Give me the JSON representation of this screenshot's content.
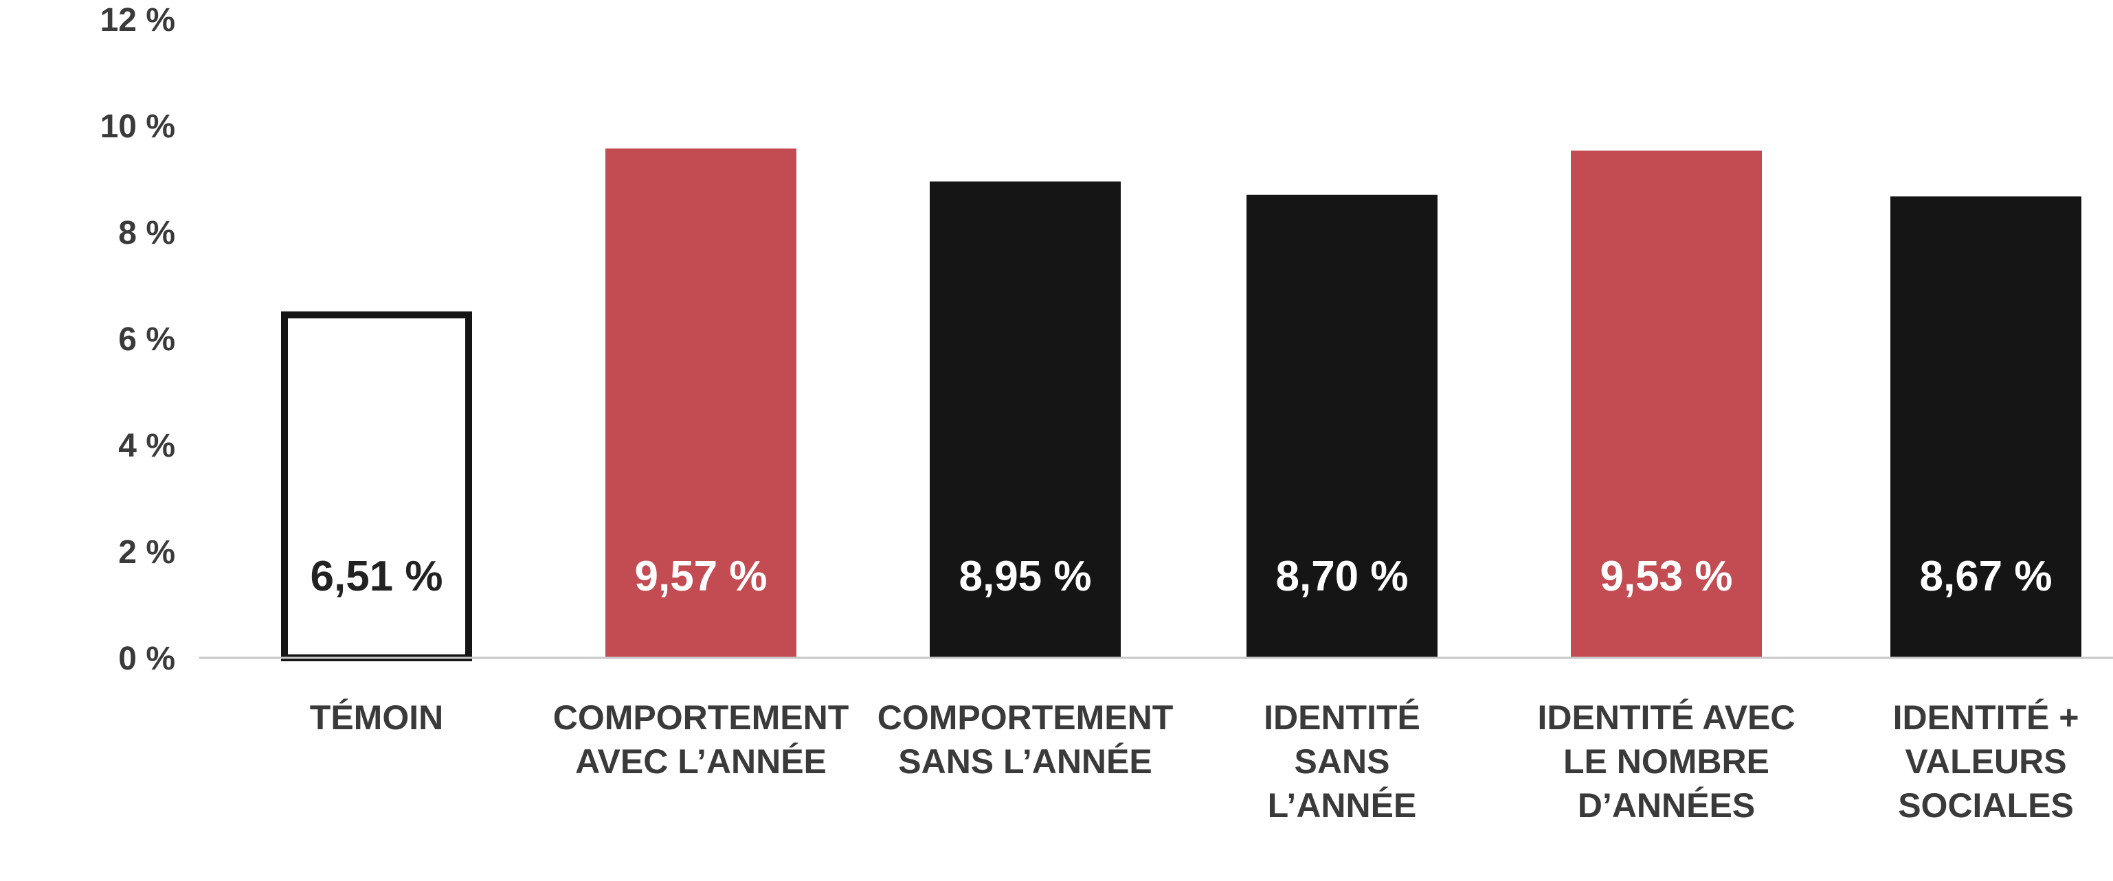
{
  "chart_data": {
    "type": "bar",
    "title": "",
    "xlabel": "",
    "ylabel": "",
    "ylim": [
      0,
      12
    ],
    "yticks": [
      0,
      2,
      4,
      6,
      8,
      10,
      12
    ],
    "ytick_labels": [
      "0 %",
      "2 %",
      "4 %",
      "6 %",
      "8 %",
      "10 %",
      "12 %"
    ],
    "grid": false,
    "legend": "none",
    "categories": [
      [
        "TÉMOIN"
      ],
      [
        "COMPORTEMENT",
        "AVEC L’ANNÉE"
      ],
      [
        "COMPORTEMENT",
        "SANS L’ANNÉE"
      ],
      [
        "IDENTITÉ",
        "SANS",
        "L’ANNÉE"
      ],
      [
        "IDENTITÉ AVEC",
        "LE NOMBRE",
        "D’ANNÉES"
      ],
      [
        "IDENTITÉ +",
        "VALEURS",
        "SOCIALES"
      ]
    ],
    "values": [
      6.51,
      9.57,
      8.95,
      8.7,
      9.53,
      8.67
    ],
    "data_labels": [
      "6,51 %",
      "9,57 %",
      "8,95 %",
      "8,70 %",
      "9,53 %",
      "8,67 %"
    ],
    "bar_styles": [
      "outline",
      "red",
      "black",
      "black",
      "red",
      "black"
    ],
    "colors": {
      "red": "#c24c52",
      "black": "#151515",
      "outline_stroke": "#151515",
      "outline_fill": "#ffffff",
      "label_on_dark": "#ffffff",
      "label_on_light": "#222222",
      "axis_line": "#c8c8c8",
      "text": "#3a3a3a"
    }
  }
}
